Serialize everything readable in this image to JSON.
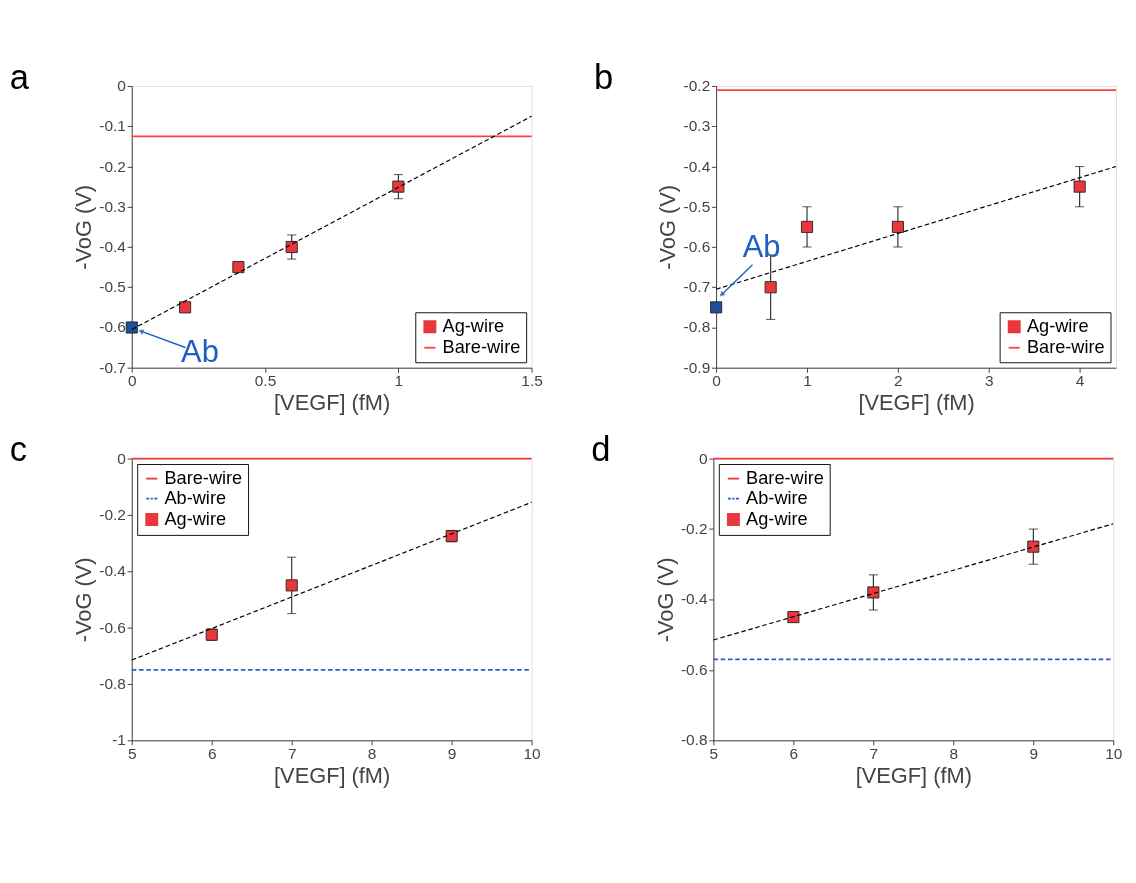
{
  "chart_data": [
    {
      "type": "scatter",
      "title": "a",
      "xlabel": "[VEGF] (fM)",
      "ylabel": "-VoG (V)",
      "xlim": [
        0,
        1.5
      ],
      "xticks": [
        0,
        0.5,
        1,
        1.5
      ],
      "ylim": [
        -0.7,
        0
      ],
      "yticks": [
        -0.7,
        -0.6,
        -0.5,
        -0.4,
        -0.3,
        -0.2,
        -0.1,
        0
      ],
      "grid": false,
      "legend": "bottom right",
      "annotations": [
        {
          "text": "Ab",
          "x": 0,
          "y": -0.6
        }
      ],
      "series": [
        {
          "name": "Ag-wire",
          "marker": "square",
          "color": "#e8383d",
          "x": [
            0.2,
            0.4,
            0.6,
            1.0
          ],
          "values": [
            -0.55,
            -0.45,
            -0.4,
            -0.25
          ],
          "errors": [
            null,
            null,
            0.03,
            0.03
          ]
        },
        {
          "name": "Bare-wire",
          "type": "line",
          "color": "#ff4040",
          "line_style": "solid",
          "x": [
            0,
            1.5
          ],
          "values": [
            -0.125,
            -0.125
          ]
        },
        {
          "marker": "square",
          "color": "#1f4e9c",
          "x": [
            0
          ],
          "values": [
            -0.6
          ]
        },
        {
          "type": "line",
          "color": "#000000",
          "line_style": "dashed",
          "x": [
            0,
            1.5
          ],
          "values": [
            -0.605,
            -0.075
          ]
        }
      ]
    },
    {
      "type": "scatter",
      "title": "b",
      "xlabel": "[VEGF] (fM)",
      "ylabel": "-VoG (V)",
      "xlim": [
        0,
        4.4
      ],
      "xticks": [
        0,
        1,
        2,
        3,
        4
      ],
      "ylim": [
        -0.9,
        -0.2
      ],
      "yticks": [
        -0.9,
        -0.8,
        -0.7,
        -0.6,
        -0.5,
        -0.4,
        -0.3,
        -0.2
      ],
      "grid": false,
      "legend": "bottom right",
      "annotations": [
        {
          "text": "Ab",
          "x": 0,
          "y": -0.75
        }
      ],
      "series": [
        {
          "name": "Ag-wire",
          "marker": "square",
          "color": "#e8383d",
          "x": [
            0.6,
            1,
            2,
            4
          ],
          "values": [
            -0.7,
            -0.55,
            -0.55,
            -0.45
          ],
          "errors": [
            0.08,
            0.05,
            0.05,
            0.05
          ]
        },
        {
          "name": "Bare-wire",
          "type": "line",
          "color": "#ff4040",
          "line_style": "solid",
          "x": [
            0,
            4.4
          ],
          "values": [
            -0.21,
            -0.21
          ]
        },
        {
          "marker": "square",
          "color": "#1f4e9c",
          "x": [
            0
          ],
          "values": [
            -0.75
          ]
        },
        {
          "type": "line",
          "color": "#000000",
          "line_style": "dashed",
          "x": [
            0,
            4.4
          ],
          "values": [
            -0.705,
            -0.4
          ]
        }
      ]
    },
    {
      "type": "scatter",
      "title": "c",
      "xlabel": "[VEGF] (fM)",
      "ylabel": "-VoG (V)",
      "xlim": [
        5,
        10
      ],
      "xticks": [
        5,
        6,
        7,
        8,
        9,
        10
      ],
      "ylim": [
        -1,
        0
      ],
      "yticks": [
        -1,
        -0.8,
        -0.6,
        -0.4,
        -0.2,
        0
      ],
      "grid": false,
      "legend": "top left",
      "series": [
        {
          "name": "Bare-wire",
          "type": "line",
          "color": "#e8383d",
          "line_style": "solid",
          "x": [
            5,
            10
          ],
          "values": [
            0,
            0
          ]
        },
        {
          "name": "Ab-wire",
          "type": "line",
          "color": "#2463c4",
          "line_style": "dashed",
          "x": [
            5,
            10
          ],
          "values": [
            -0.75,
            -0.75
          ]
        },
        {
          "name": "Ag-wire",
          "marker": "square",
          "color": "#e8383d",
          "x": [
            6,
            7,
            9
          ],
          "values": [
            -0.625,
            -0.45,
            -0.275
          ],
          "errors": [
            0.02,
            0.1,
            0.02
          ]
        },
        {
          "type": "line",
          "color": "#000000",
          "line_style": "dashed",
          "x": [
            5,
            10
          ],
          "values": [
            -0.715,
            -0.155
          ]
        }
      ]
    },
    {
      "type": "scatter",
      "title": "d",
      "xlabel": "[VEGF] (fM)",
      "ylabel": "-VoG (V)",
      "xlim": [
        5,
        10
      ],
      "xticks": [
        5,
        6,
        7,
        8,
        9,
        10
      ],
      "ylim": [
        -0.8,
        0
      ],
      "yticks": [
        -0.8,
        -0.6,
        -0.4,
        -0.2,
        0
      ],
      "grid": false,
      "legend": "top left",
      "series": [
        {
          "name": "Bare-wire",
          "type": "line",
          "color": "#e8383d",
          "line_style": "solid",
          "x": [
            5,
            10
          ],
          "values": [
            0,
            0
          ]
        },
        {
          "name": "Ab-wire",
          "type": "line",
          "color": "#2463c4",
          "line_style": "dashed",
          "x": [
            5,
            10
          ],
          "values": [
            -0.57,
            -0.57
          ]
        },
        {
          "name": "Ag-wire",
          "marker": "square",
          "color": "#e8383d",
          "x": [
            6,
            7,
            9
          ],
          "values": [
            -0.45,
            -0.38,
            -0.25
          ],
          "errors": [
            null,
            0.05,
            0.05
          ]
        },
        {
          "type": "line",
          "color": "#000000",
          "line_style": "dashed",
          "x": [
            5,
            10
          ],
          "values": [
            -0.515,
            -0.185
          ]
        }
      ]
    }
  ]
}
